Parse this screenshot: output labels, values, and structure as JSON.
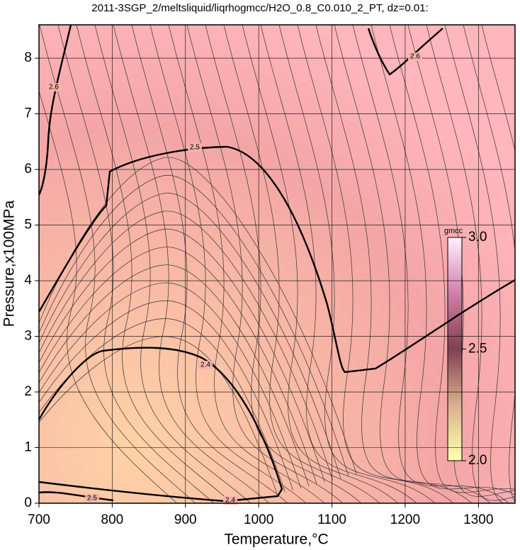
{
  "chart_data": {
    "type": "contour",
    "title": "2011-3SGP_2/meltsliquid/liqrhogmcc/H2O_0.8_C0.010_2_PT, dz=0.01:",
    "x_label": "Temperature,°C",
    "y_label": "Pressure,x100MPa",
    "xlim": [
      700,
      1350
    ],
    "ylim": [
      0,
      8.6
    ],
    "xticks": [
      700,
      800,
      900,
      1000,
      1100,
      1200,
      1300
    ],
    "yticks": [
      0,
      1,
      2,
      3,
      4,
      5,
      6,
      7,
      8
    ],
    "grid": true,
    "levels": [
      2.4,
      2.5,
      2.6
    ],
    "colorbar": {
      "label": "gmcc",
      "lim": [
        2,
        3
      ],
      "ticks": [
        {
          "value": 2,
          "label": "2.0"
        },
        2.5,
        {
          "value": 3,
          "label": "3.0"
        }
      ]
    }
  }
}
